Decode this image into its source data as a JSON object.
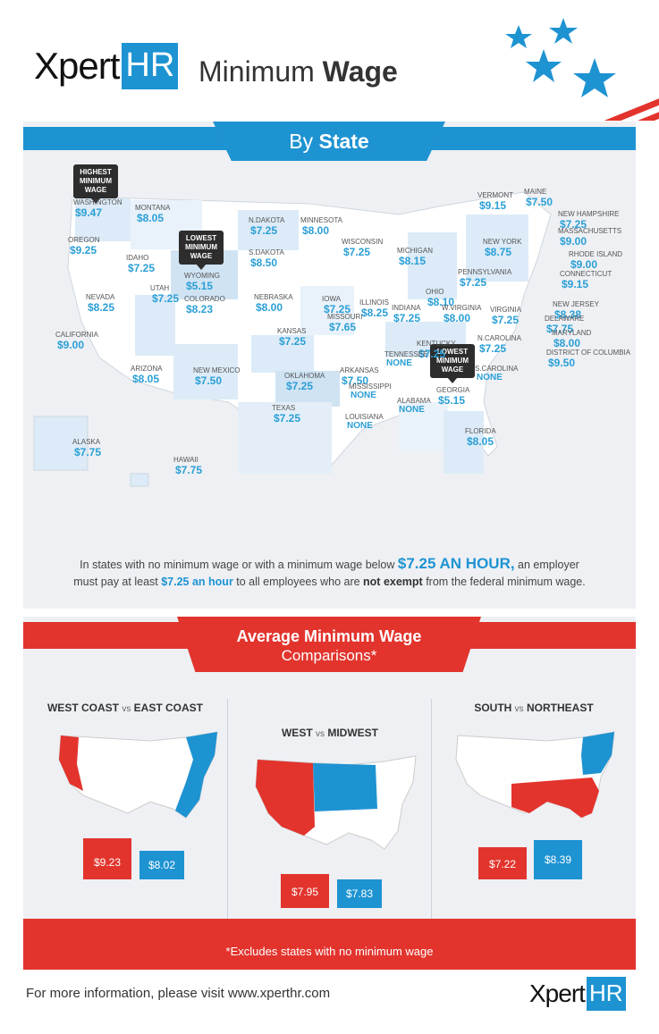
{
  "header": {
    "logo_xpert": "Xpert",
    "logo_hr": "HR",
    "title_light": "Minimum ",
    "title_bold": "Wage"
  },
  "state_section": {
    "title_light": "By ",
    "title_bold": "State",
    "pins": {
      "highest": "HIGHEST MINIMUM WAGE",
      "lowest_wy": "LOWEST MINIMUM WAGE",
      "lowest_ga": "LOWEST MINIMUM WAGE"
    },
    "states": [
      {
        "name": "WASHINGTON",
        "wage": "$9.47"
      },
      {
        "name": "OREGON",
        "wage": "$9.25"
      },
      {
        "name": "CALIFORNIA",
        "wage": "$9.00"
      },
      {
        "name": "NEVADA",
        "wage": "$8.25"
      },
      {
        "name": "IDAHO",
        "wage": "$7.25"
      },
      {
        "name": "MONTANA",
        "wage": "$8.05"
      },
      {
        "name": "WYOMING",
        "wage": "$5.15"
      },
      {
        "name": "UTAH",
        "wage": "$7.25"
      },
      {
        "name": "ARIZONA",
        "wage": "$8.05"
      },
      {
        "name": "COLORADO",
        "wage": "$8.23"
      },
      {
        "name": "NEW MEXICO",
        "wage": "$7.50"
      },
      {
        "name": "N.DAKOTA",
        "wage": "$7.25"
      },
      {
        "name": "S.DAKOTA",
        "wage": "$8.50"
      },
      {
        "name": "NEBRASKA",
        "wage": "$8.00"
      },
      {
        "name": "KANSAS",
        "wage": "$7.25"
      },
      {
        "name": "OKLAHOMA",
        "wage": "$7.25"
      },
      {
        "name": "TEXAS",
        "wage": "$7.25"
      },
      {
        "name": "MINNESOTA",
        "wage": "$8.00"
      },
      {
        "name": "IOWA",
        "wage": "$7.25"
      },
      {
        "name": "MISSOURI",
        "wage": "$7.65"
      },
      {
        "name": "ARKANSAS",
        "wage": "$7.50"
      },
      {
        "name": "LOUISIANA",
        "wage": "NONE"
      },
      {
        "name": "WISCONSIN",
        "wage": "$7.25"
      },
      {
        "name": "ILLINOIS",
        "wage": "$8.25"
      },
      {
        "name": "MISSISSIPPI",
        "wage": "NONE"
      },
      {
        "name": "MICHIGAN",
        "wage": "$8.15"
      },
      {
        "name": "INDIANA",
        "wage": "$7.25"
      },
      {
        "name": "KENTUCKY",
        "wage": "$7.25"
      },
      {
        "name": "TENNESSEE",
        "wage": "NONE"
      },
      {
        "name": "ALABAMA",
        "wage": "NONE"
      },
      {
        "name": "OHIO",
        "wage": "$8.10"
      },
      {
        "name": "W.VIRGINIA",
        "wage": "$8.00"
      },
      {
        "name": "GEORGIA",
        "wage": "$5.15"
      },
      {
        "name": "FLORIDA",
        "wage": "$8.05"
      },
      {
        "name": "S.CAROLINA",
        "wage": "NONE"
      },
      {
        "name": "N.CAROLINA",
        "wage": "$7.25"
      },
      {
        "name": "VIRGINIA",
        "wage": "$7.25"
      },
      {
        "name": "PENNSYLVANIA",
        "wage": "$7.25"
      },
      {
        "name": "NEW YORK",
        "wage": "$8.75"
      },
      {
        "name": "VERMONT",
        "wage": "$9.15"
      },
      {
        "name": "MAINE",
        "wage": "$7.50"
      },
      {
        "name": "NEW HAMPSHIRE",
        "wage": "$7.25"
      },
      {
        "name": "MASSACHUSETTS",
        "wage": "$9.00"
      },
      {
        "name": "RHODE ISLAND",
        "wage": "$9.00"
      },
      {
        "name": "CONNECTICUT",
        "wage": "$9.15"
      },
      {
        "name": "NEW JERSEY",
        "wage": "$8.38"
      },
      {
        "name": "DELAWARE",
        "wage": "$7.75"
      },
      {
        "name": "MARYLAND",
        "wage": "$8.00"
      },
      {
        "name": "DISTRICT OF COLUMBIA",
        "wage": "$9.50"
      },
      {
        "name": "ALASKA",
        "wage": "$7.75"
      },
      {
        "name": "HAWAII",
        "wage": "$7.75"
      }
    ],
    "note_part1": "In states with no minimum wage or with a minimum wage below ",
    "note_big": "$7.25 AN HOUR,",
    "note_part2": " an employer",
    "note_part3": "must pay at least ",
    "note_blue": "$7.25 an hour",
    "note_part4": " to all employees who are ",
    "note_strong": "not exempt",
    "note_part5": " from the federal minimum wage."
  },
  "comparisons": {
    "title": "Average Minimum Wage",
    "subtitle": "Comparisons*",
    "panels": [
      {
        "left": "WEST COAST",
        "vs": "vs",
        "right": "EAST COAST",
        "red_value": "$9.23",
        "blue_value": "$8.02"
      },
      {
        "left": "WEST",
        "vs": "vs",
        "right": "MIDWEST",
        "red_value": "$7.95",
        "blue_value": "$7.83"
      },
      {
        "left": "SOUTH",
        "vs": "vs",
        "right": "NORTHEAST",
        "red_value": "$7.22",
        "blue_value": "$8.39"
      }
    ],
    "footnote": "*Excludes states with no minimum wage"
  },
  "footer": {
    "more_info": "For more information, please visit www.xperthr.com",
    "logo_xpert": "Xpert",
    "logo_hr": "HR"
  },
  "colors": {
    "brand_blue": "#1e93d2",
    "accent_red": "#e2342d",
    "panel_bg": "#eef0f4"
  }
}
